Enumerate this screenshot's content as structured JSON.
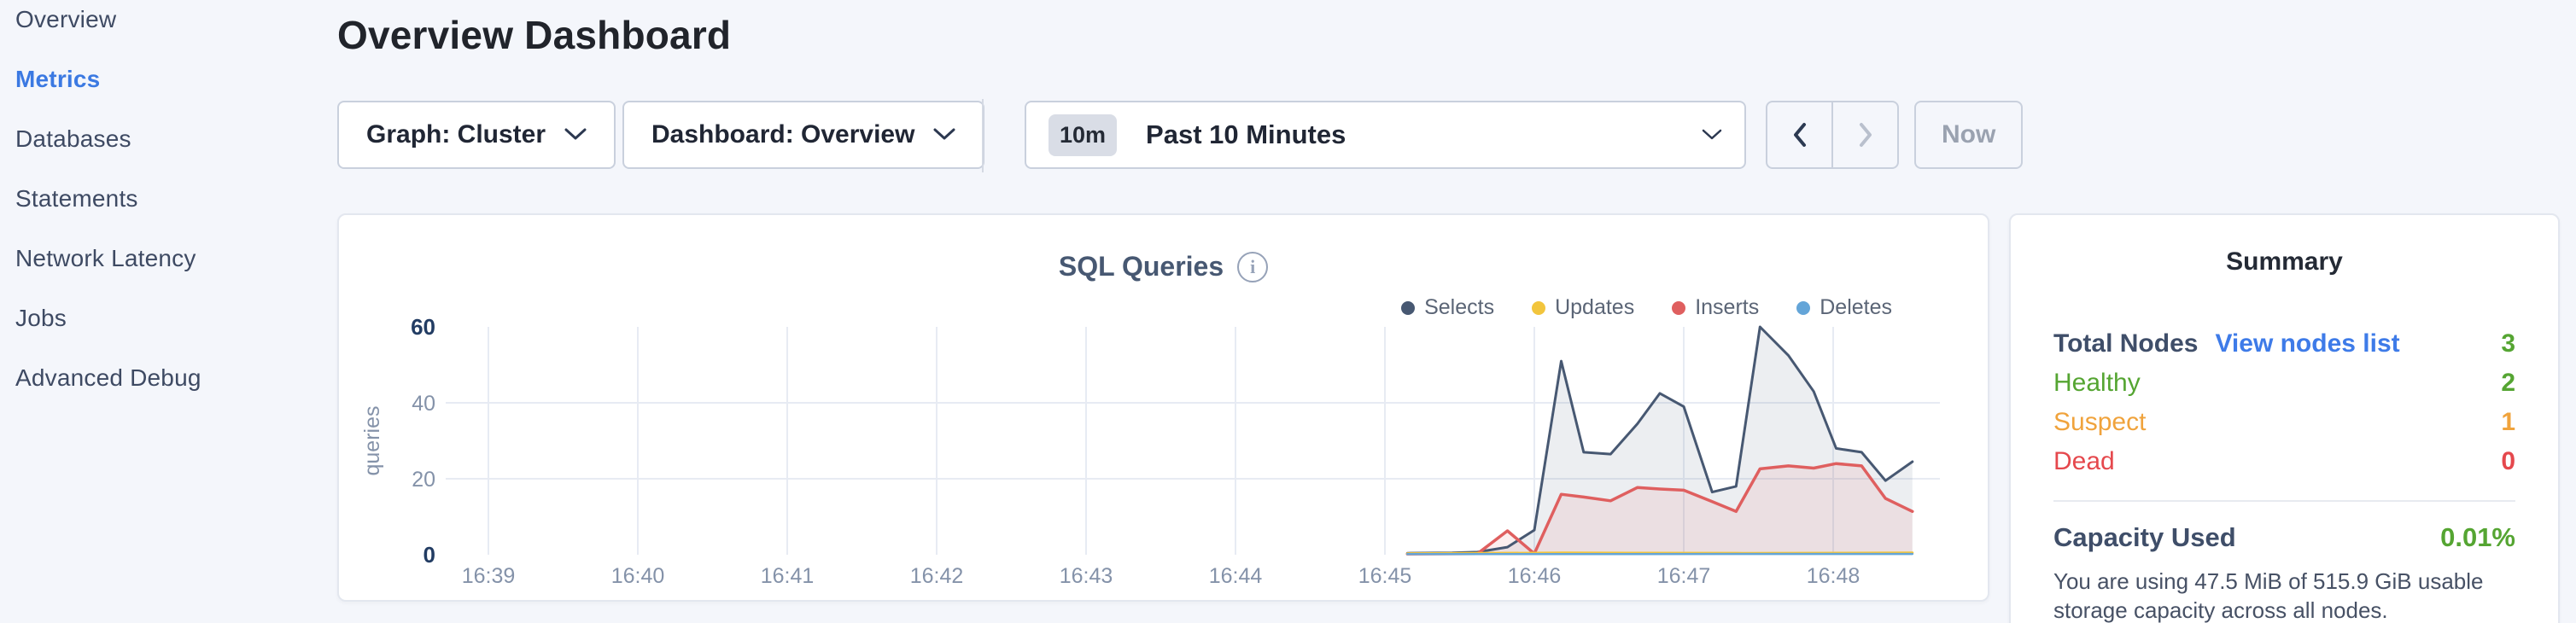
{
  "colors": {
    "accent_blue": "#3b79e2",
    "link_blue": "#3e7be8",
    "healthy_green": "#55a532",
    "suspect_orange": "#f0a33c",
    "dead_red": "#e5484d",
    "selects_navy": "#475872",
    "updates_yellow": "#f2c53d",
    "inserts_red": "#df5f5f",
    "deletes_blue": "#64a5d8"
  },
  "sidebar": {
    "items": [
      {
        "label": "Overview",
        "active": false
      },
      {
        "label": "Metrics",
        "active": true
      },
      {
        "label": "Databases",
        "active": false
      },
      {
        "label": "Statements",
        "active": false
      },
      {
        "label": "Network Latency",
        "active": false
      },
      {
        "label": "Jobs",
        "active": false
      },
      {
        "label": "Advanced Debug",
        "active": false
      }
    ]
  },
  "header": {
    "title": "Overview Dashboard"
  },
  "controls": {
    "graph_dropdown_label": "Graph: Cluster",
    "dashboard_dropdown_label": "Dashboard: Overview",
    "time_window_badge": "10m",
    "time_window_label": "Past 10 Minutes",
    "now_label": "Now"
  },
  "chart_data": {
    "type": "area",
    "title": "SQL Queries",
    "ylabel": "queries",
    "ylim": [
      0,
      60
    ],
    "yticks": [
      0,
      20,
      40,
      60
    ],
    "xticks": [
      "16:39",
      "16:40",
      "16:41",
      "16:42",
      "16:43",
      "16:44",
      "16:45",
      "16:46",
      "16:47",
      "16:48"
    ],
    "x_unit": "minutes after 16:39, 10s sample interval",
    "grid": true,
    "legend_position": "top-right",
    "series": [
      {
        "name": "Selects",
        "color": "#475872",
        "fill": "rgba(71,88,114,0.10)",
        "points": [
          [
            6.15,
            0.4
          ],
          [
            6.45,
            0.5
          ],
          [
            6.62,
            0.7
          ],
          [
            6.82,
            2
          ],
          [
            7.0,
            6.5
          ],
          [
            7.18,
            51
          ],
          [
            7.33,
            27
          ],
          [
            7.51,
            26.5
          ],
          [
            7.69,
            34.5
          ],
          [
            7.84,
            42.5
          ],
          [
            8.0,
            39
          ],
          [
            8.19,
            16.5
          ],
          [
            8.35,
            18
          ],
          [
            8.51,
            60
          ],
          [
            8.7,
            52.5
          ],
          [
            8.87,
            43
          ],
          [
            9.02,
            28
          ],
          [
            9.19,
            27
          ],
          [
            9.35,
            19.5
          ],
          [
            9.53,
            24.5
          ]
        ]
      },
      {
        "name": "Updates",
        "color": "#f2c53d",
        "fill": "none",
        "points": [
          [
            6.15,
            0.3
          ],
          [
            7.2,
            0.5
          ],
          [
            8.4,
            0.4
          ],
          [
            9.53,
            0.5
          ]
        ]
      },
      {
        "name": "Inserts",
        "color": "#df5f5f",
        "fill": "rgba(223,95,95,0.10)",
        "points": [
          [
            6.15,
            0.2
          ],
          [
            6.62,
            0.3
          ],
          [
            6.82,
            6.3
          ],
          [
            7.0,
            0.3
          ],
          [
            7.18,
            15.9
          ],
          [
            7.33,
            15.2
          ],
          [
            7.51,
            14.2
          ],
          [
            7.69,
            17.7
          ],
          [
            7.84,
            17.3
          ],
          [
            8.0,
            17.0
          ],
          [
            8.19,
            14.0
          ],
          [
            8.35,
            11.4
          ],
          [
            8.51,
            22.6
          ],
          [
            8.7,
            23.4
          ],
          [
            8.87,
            22.8
          ],
          [
            9.02,
            24.0
          ],
          [
            9.19,
            23.4
          ],
          [
            9.35,
            14.8
          ],
          [
            9.53,
            11.4
          ]
        ]
      },
      {
        "name": "Deletes",
        "color": "#64a5d8",
        "fill": "none",
        "points": [
          [
            6.15,
            0.15
          ],
          [
            9.53,
            0.2
          ]
        ]
      }
    ]
  },
  "summary": {
    "title": "Summary",
    "rows": [
      {
        "label": "Total Nodes",
        "label_color": "#3f4e69",
        "link": "View nodes list",
        "link_color": "#3e7be8",
        "value": "3",
        "value_color": "#55a532"
      },
      {
        "label": "Healthy",
        "label_color": "#55a532",
        "link": "",
        "link_color": "",
        "value": "2",
        "value_color": "#55a532"
      },
      {
        "label": "Suspect",
        "label_color": "#f0a33c",
        "link": "",
        "link_color": "",
        "value": "1",
        "value_color": "#f0a33c"
      },
      {
        "label": "Dead",
        "label_color": "#e5484d",
        "link": "",
        "link_color": "",
        "value": "0",
        "value_color": "#e5484d"
      }
    ],
    "capacity_label": "Capacity Used",
    "capacity_value": "0.01%",
    "capacity_value_color": "#55a532",
    "capacity_description": "You are using 47.5 MiB of 515.9 GiB usable storage capacity across all nodes."
  }
}
